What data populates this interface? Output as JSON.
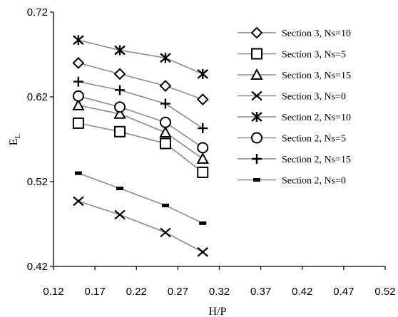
{
  "chart_data": {
    "type": "line",
    "xlabel": "H/P",
    "ylabel_main": "E",
    "ylabel_sub": "L",
    "x_ticks": [
      "0.12",
      "0.17",
      "0.22",
      "0.27",
      "0.32",
      "0.37",
      "0.42",
      "0.47",
      "0.52"
    ],
    "y_ticks": [
      "0.42",
      "0.52",
      "0.62",
      "0.72"
    ],
    "xlim": [
      0.12,
      0.52
    ],
    "ylim": [
      0.42,
      0.72
    ],
    "grid": false,
    "legend_position": "right",
    "x": [
      0.15,
      0.2,
      0.255,
      0.3
    ],
    "series": [
      {
        "name": "Section 3, Ns=10",
        "marker": "diamond",
        "values": [
          0.66,
          0.647,
          0.633,
          0.617
        ]
      },
      {
        "name": "Section 3, Ns=5",
        "marker": "square",
        "values": [
          0.589,
          0.579,
          0.565,
          0.531
        ]
      },
      {
        "name": "Section 3, Ns=15",
        "marker": "triangle",
        "values": [
          0.61,
          0.6,
          0.578,
          0.547
        ]
      },
      {
        "name": "Section 3, Ns=0",
        "marker": "x",
        "values": [
          0.497,
          0.481,
          0.46,
          0.437
        ]
      },
      {
        "name": "Section 2, Ns=10",
        "marker": "star",
        "values": [
          0.687,
          0.675,
          0.666,
          0.647
        ]
      },
      {
        "name": "Section 2, Ns=5",
        "marker": "circle",
        "values": [
          0.621,
          0.608,
          0.59,
          0.56
        ]
      },
      {
        "name": "Section 2, Ns=15",
        "marker": "plus",
        "values": [
          0.638,
          0.628,
          0.612,
          0.583
        ]
      },
      {
        "name": "Section 2, Ns=0",
        "marker": "dash",
        "values": [
          0.53,
          0.512,
          0.492,
          0.471
        ]
      }
    ],
    "colors": {
      "line": "#8c8c8c",
      "marker": "#000000",
      "axis": "#000000"
    }
  }
}
